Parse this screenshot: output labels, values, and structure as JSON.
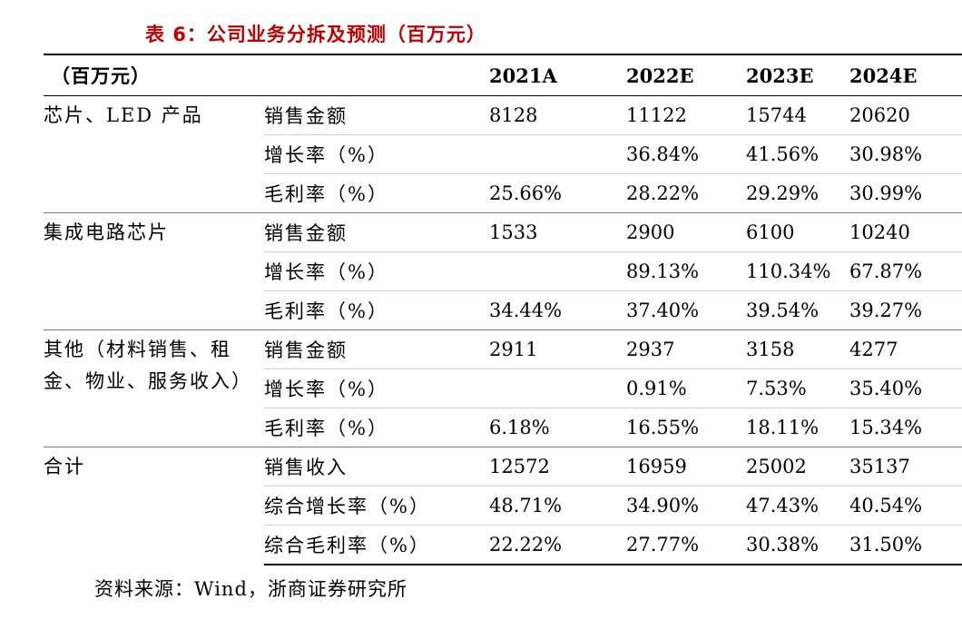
{
  "title": "表 6：公司业务分拆及预测（百万元）",
  "header": {
    "unit": "（百万元）",
    "years": [
      "2021A",
      "2022E",
      "2023E",
      "2024E"
    ]
  },
  "groups": [
    {
      "segment_lines": [
        "芯片、LED 产品"
      ],
      "rows": [
        {
          "metric": "销售金额",
          "values": [
            "8128",
            "11122",
            "15744",
            "20620"
          ]
        },
        {
          "metric": "增长率（%）",
          "values": [
            "",
            "36.84%",
            "41.56%",
            "30.98%"
          ]
        },
        {
          "metric": "毛利率（%）",
          "values": [
            "25.66%",
            "28.22%",
            "29.29%",
            "30.99%"
          ]
        }
      ]
    },
    {
      "segment_lines": [
        "集成电路芯片"
      ],
      "rows": [
        {
          "metric": "销售金额",
          "values": [
            "1533",
            "2900",
            "6100",
            "10240"
          ]
        },
        {
          "metric": "增长率（%）",
          "values": [
            "",
            "89.13%",
            "110.34%",
            "67.87%"
          ]
        },
        {
          "metric": "毛利率（%）",
          "values": [
            "34.44%",
            "37.40%",
            "39.54%",
            "39.27%"
          ]
        }
      ]
    },
    {
      "segment_lines": [
        "其他（材料销售、租",
        "金、物业、服务收入）"
      ],
      "rows": [
        {
          "metric": "销售金额",
          "values": [
            "2911",
            "2937",
            "3158",
            "4277"
          ]
        },
        {
          "metric": "增长率（%）",
          "values": [
            "",
            "0.91%",
            "7.53%",
            "35.40%"
          ]
        },
        {
          "metric": "毛利率（%）",
          "values": [
            "6.18%",
            "16.55%",
            "18.11%",
            "15.34%"
          ]
        }
      ]
    },
    {
      "segment_lines": [
        "合计"
      ],
      "rows": [
        {
          "metric": "销售收入",
          "values": [
            "12572",
            "16959",
            "25002",
            "35137"
          ]
        },
        {
          "metric": "综合增长率（%）",
          "values": [
            "48.71%",
            "34.90%",
            "47.43%",
            "40.54%"
          ]
        },
        {
          "metric": "综合毛利率（%）",
          "values": [
            "22.22%",
            "27.77%",
            "30.38%",
            "31.50%"
          ]
        }
      ]
    }
  ],
  "source": "资料来源：Wind，浙商证券研究所"
}
